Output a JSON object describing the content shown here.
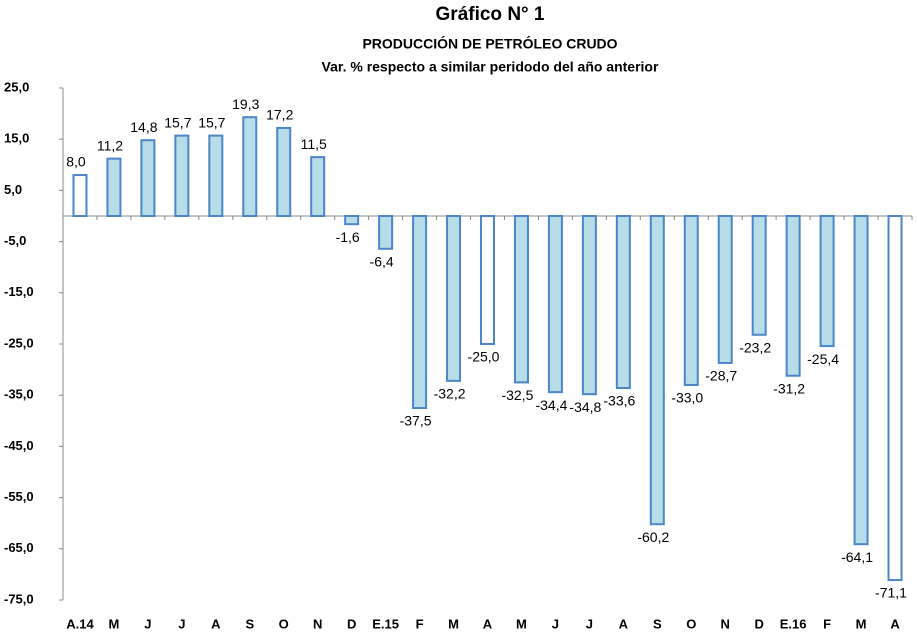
{
  "chart_data": {
    "type": "bar",
    "title": "Gráfico N° 1",
    "subtitle": "PRODUCCIÓN DE PETRÓLEO CRUDO",
    "subtitle2": "Var. % respecto a similar peridodo del año anterior",
    "categories": [
      "A.14",
      "M",
      "J",
      "J",
      "A",
      "S",
      "O",
      "N",
      "D",
      "E.15",
      "F",
      "M",
      "A",
      "M",
      "J",
      "J",
      "A",
      "S",
      "O",
      "N",
      "D",
      "E.16",
      "F",
      "M",
      "A"
    ],
    "values": [
      8.0,
      11.2,
      14.8,
      15.7,
      15.7,
      19.3,
      17.2,
      11.5,
      -1.6,
      -6.4,
      -37.5,
      -32.2,
      -25.0,
      -32.5,
      -34.4,
      -34.8,
      -33.6,
      -60.2,
      -33.0,
      -28.7,
      -23.2,
      -31.2,
      -25.4,
      -64.1,
      -71.1
    ],
    "value_labels": [
      "8,0",
      "11,2",
      "14,8",
      "15,7",
      "15,7",
      "19,3",
      "17,2",
      "11,5",
      "-1,6",
      "-6,4",
      "-37,5",
      "-32,2",
      "-25,0",
      "-32,5",
      "-34,4",
      "-34,8",
      "-33,6",
      "-60,2",
      "-33,0",
      "-28,7",
      "-23,2",
      "-31,2",
      "-25,4",
      "-64,1",
      "-71,1"
    ],
    "colors": [
      "#ffffff",
      "#b7dde8",
      "#b7dde8",
      "#b7dde8",
      "#b7dde8",
      "#b7dde8",
      "#b7dde8",
      "#b7dde8",
      "#b7dde8",
      "#b7dde8",
      "#b7dde8",
      "#b7dde8",
      "#ffffff",
      "#b7dde8",
      "#b7dde8",
      "#b7dde8",
      "#b7dde8",
      "#b7dde8",
      "#b7dde8",
      "#b7dde8",
      "#b7dde8",
      "#b7dde8",
      "#b7dde8",
      "#b7dde8",
      "#ffffff"
    ],
    "edge_color": "#4a86c8",
    "ylim": [
      -75,
      25
    ],
    "yticks": [
      {
        "value": -75,
        "label": "-75,0"
      },
      {
        "value": -65,
        "label": "-65,0"
      },
      {
        "value": -55,
        "label": "-55,0"
      },
      {
        "value": -45,
        "label": "-45,0"
      },
      {
        "value": -35,
        "label": "-35,0"
      },
      {
        "value": -25,
        "label": "-25,0"
      },
      {
        "value": -15,
        "label": "-15,0"
      },
      {
        "value": -5,
        "label": "-5,0"
      },
      {
        "value": 5,
        "label": "5,0"
      },
      {
        "value": 15,
        "label": "15,0"
      },
      {
        "value": 25,
        "label": "25,0"
      }
    ],
    "grid": false
  }
}
